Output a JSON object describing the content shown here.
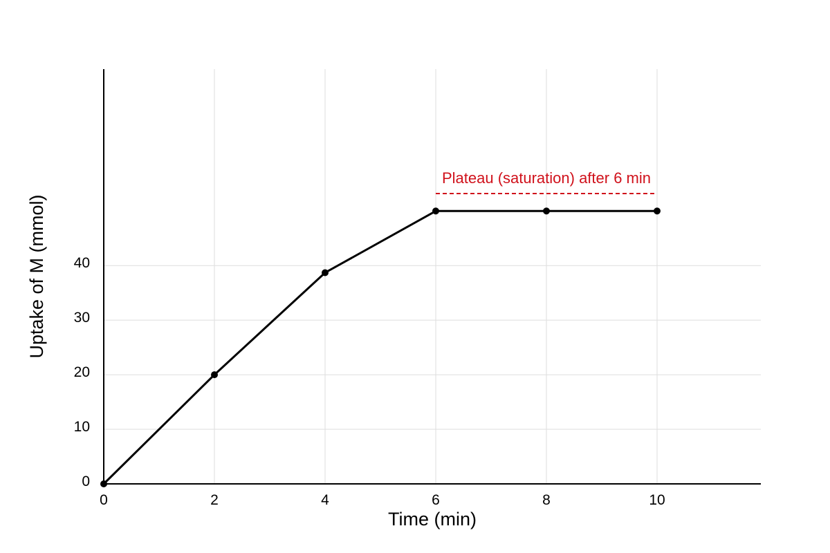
{
  "chart_data": {
    "type": "line",
    "xlabel": "Time (min)",
    "ylabel": "Uptake of M (mmol)",
    "xlim": [
      0,
      11.875
    ],
    "ylim": [
      0,
      76
    ],
    "xticks": [
      0,
      2,
      4,
      6,
      8,
      10
    ],
    "yticks": [
      0,
      10,
      20,
      30,
      40
    ],
    "grid": true,
    "legend": "none",
    "series": [
      {
        "x": [
          0,
          2,
          4,
          6,
          8,
          10
        ],
        "y": [
          0,
          20,
          38.7,
          50,
          50,
          50
        ],
        "color": "#000000",
        "marker": "circle"
      }
    ],
    "annotations": [
      {
        "text": "Plateau (saturation) after 6 min",
        "x": [
          6,
          10
        ],
        "y": 53.2,
        "line_style": "dashed",
        "color": "#d0111b"
      }
    ],
    "colors": {
      "grid": "#dddddd",
      "axis": "#000000"
    }
  }
}
